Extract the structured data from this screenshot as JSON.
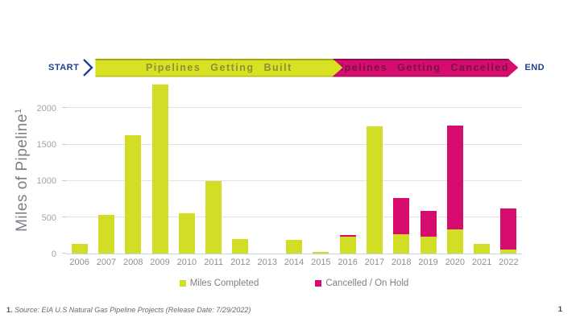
{
  "banner": {
    "start_label": "START",
    "built_label": "Pipelines Getting Built",
    "cancelled_label": "Pipelines Getting Cancelled",
    "end_label": "END",
    "built_color": "#d8e222",
    "cancelled_color": "#d60d6e",
    "endpoint_text_color": "#1f3f94"
  },
  "chart_data": {
    "type": "bar",
    "stacked": true,
    "ylabel_text": "Miles of Pipeline",
    "ylabel_sup": "1",
    "categories": [
      "2006",
      "2007",
      "2008",
      "2009",
      "2010",
      "2011",
      "2012",
      "2013",
      "2014",
      "2015",
      "2016",
      "2017",
      "2018",
      "2019",
      "2020",
      "2021",
      "2022"
    ],
    "series": [
      {
        "name": "Miles Completed",
        "color": "#d2dd26",
        "values": [
          130,
          530,
          1630,
          2330,
          550,
          1000,
          200,
          0,
          190,
          25,
          230,
          1750,
          270,
          230,
          330,
          130,
          60
        ]
      },
      {
        "name": "Cancelled / On Hold",
        "color": "#d60d6e",
        "values": [
          0,
          0,
          0,
          0,
          0,
          0,
          0,
          0,
          0,
          0,
          25,
          0,
          490,
          360,
          1430,
          0,
          555
        ]
      }
    ],
    "yticks": [
      0,
      500,
      1000,
      1500,
      2000
    ],
    "ylim": [
      0,
      2380
    ],
    "grid": "horizontal",
    "legend_position": "bottom"
  },
  "footer": {
    "note_number": "1.",
    "note_text": "Source: EIA U.S Natural Gas Pipeline Projects (Release Date: 7/29/2022)",
    "page_number": "1"
  }
}
